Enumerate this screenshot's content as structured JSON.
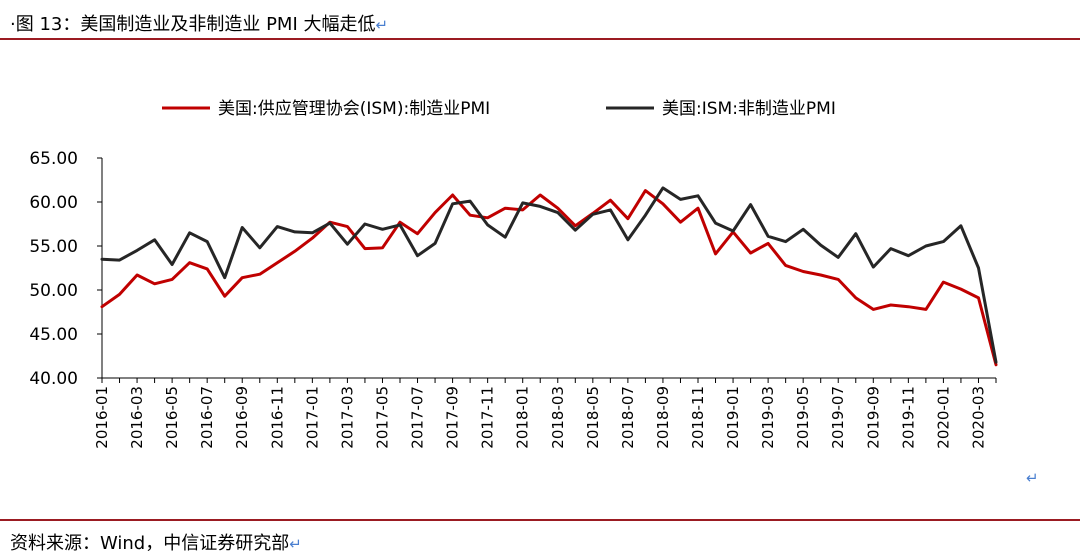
{
  "header": {
    "title": "·图 13：美国制造业及非制造业 PMI 大幅走低",
    "return_mark": "↵"
  },
  "footer": {
    "source": "资料来源：Wind，中信证券研究部",
    "return_mark": "↵"
  },
  "stray_mark": "↵",
  "colors": {
    "rule": "#9b1b22",
    "manufacturing": "#c00000",
    "nonmanufacturing": "#262626"
  },
  "chart_data": {
    "type": "line",
    "title": "",
    "xlabel": "",
    "ylabel": "",
    "ylim": [
      40,
      65
    ],
    "y_ticks": [
      "65.00",
      "60.00",
      "55.00",
      "50.00",
      "45.00",
      "40.00"
    ],
    "x_tick_labels": [
      "2016-01",
      "2016-03",
      "2016-05",
      "2016-07",
      "2016-09",
      "2016-11",
      "2017-01",
      "2017-03",
      "2017-05",
      "2017-07",
      "2017-09",
      "2017-11",
      "2018-01",
      "2018-03",
      "2018-05",
      "2018-07",
      "2018-09",
      "2018-11",
      "2019-01",
      "2019-03",
      "2019-05",
      "2019-07",
      "2019-09",
      "2019-11",
      "2020-01",
      "2020-03"
    ],
    "grid": false,
    "legend_position": "top",
    "x": [
      "2016-01",
      "2016-02",
      "2016-03",
      "2016-04",
      "2016-05",
      "2016-06",
      "2016-07",
      "2016-08",
      "2016-09",
      "2016-10",
      "2016-11",
      "2016-12",
      "2017-01",
      "2017-02",
      "2017-03",
      "2017-04",
      "2017-05",
      "2017-06",
      "2017-07",
      "2017-08",
      "2017-09",
      "2017-10",
      "2017-11",
      "2017-12",
      "2018-01",
      "2018-02",
      "2018-03",
      "2018-04",
      "2018-05",
      "2018-06",
      "2018-07",
      "2018-08",
      "2018-09",
      "2018-10",
      "2018-11",
      "2018-12",
      "2019-01",
      "2019-02",
      "2019-03",
      "2019-04",
      "2019-05",
      "2019-06",
      "2019-07",
      "2019-08",
      "2019-09",
      "2019-10",
      "2019-11",
      "2019-12",
      "2020-01",
      "2020-02",
      "2020-03",
      "2020-04"
    ],
    "series": [
      {
        "name": "美国:供应管理协会(ISM):制造业PMI",
        "values": [
          48.1,
          49.5,
          51.7,
          50.7,
          51.2,
          53.1,
          52.4,
          49.3,
          51.4,
          51.8,
          53.1,
          54.4,
          55.9,
          57.7,
          57.2,
          54.7,
          54.8,
          57.7,
          56.4,
          58.8,
          60.8,
          58.5,
          58.2,
          59.3,
          59.1,
          60.8,
          59.3,
          57.3,
          58.7,
          60.2,
          58.1,
          61.3,
          59.8,
          57.7,
          59.3,
          54.1,
          56.6,
          54.2,
          55.3,
          52.8,
          52.1,
          51.7,
          51.2,
          49.1,
          47.8,
          48.3,
          48.1,
          47.8,
          50.9,
          50.1,
          49.1,
          41.5
        ]
      },
      {
        "name": "美国:ISM:非制造业PMI",
        "values": [
          53.5,
          53.4,
          54.5,
          55.7,
          52.9,
          56.5,
          55.5,
          51.4,
          57.1,
          54.8,
          57.2,
          56.6,
          56.5,
          57.6,
          55.2,
          57.5,
          56.9,
          57.4,
          53.9,
          55.3,
          59.8,
          60.1,
          57.4,
          56.0,
          59.9,
          59.5,
          58.8,
          56.8,
          58.6,
          59.1,
          55.7,
          58.5,
          61.6,
          60.3,
          60.7,
          57.6,
          56.7,
          59.7,
          56.1,
          55.5,
          56.9,
          55.1,
          53.7,
          56.4,
          52.6,
          54.7,
          53.9,
          55.0,
          55.5,
          57.3,
          52.5,
          41.8
        ]
      }
    ]
  }
}
